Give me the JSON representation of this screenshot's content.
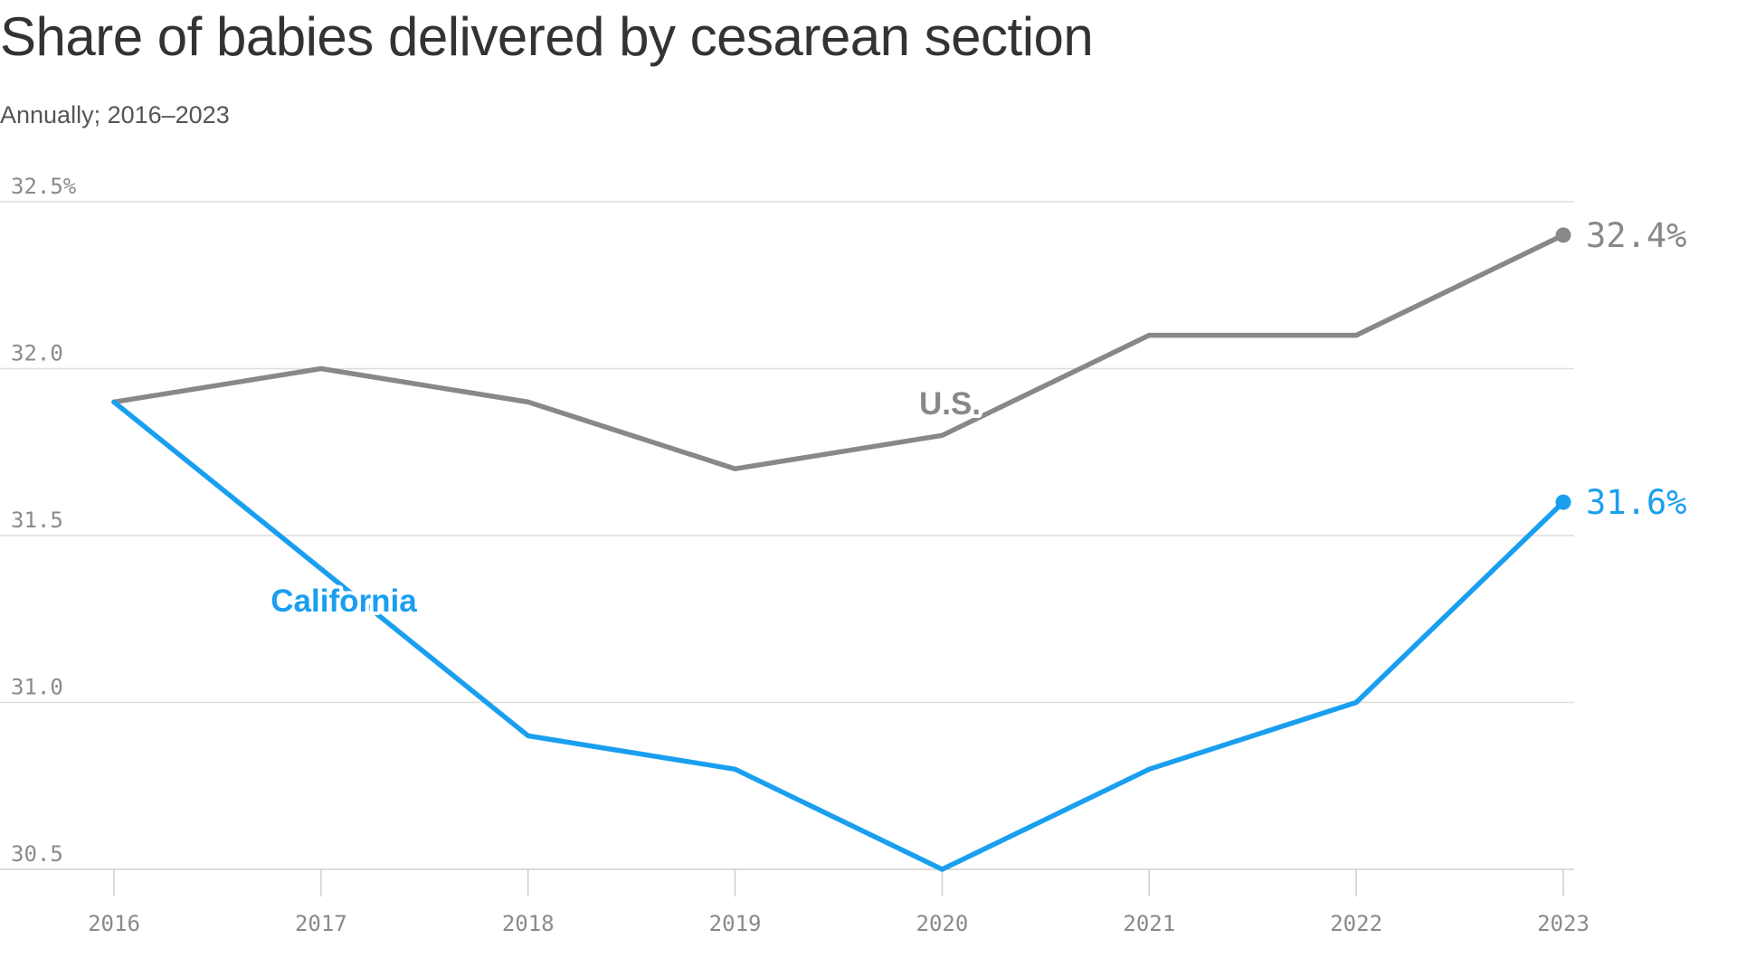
{
  "chart_data": {
    "type": "line",
    "title": "Share of babies delivered by cesarean section",
    "subtitle": "Annually; 2016–2023",
    "x": [
      2016,
      2017,
      2018,
      2019,
      2020,
      2021,
      2022,
      2023
    ],
    "x_tick_labels": [
      "2016",
      "2017",
      "2018",
      "2019",
      "2020",
      "2021",
      "2022",
      "2023"
    ],
    "y_ticks": [
      30.5,
      31.0,
      31.5,
      32.0,
      32.5
    ],
    "y_tick_labels": [
      "30.5",
      "31.0",
      "31.5",
      "32.0",
      "32.5%"
    ],
    "ylim": [
      30.5,
      32.5
    ],
    "grid": true,
    "series": [
      {
        "name": "U.S.",
        "color": "#888888",
        "values": [
          31.9,
          32.0,
          31.9,
          31.7,
          31.8,
          32.1,
          32.1,
          32.4
        ],
        "end_label": "32.4%"
      },
      {
        "name": "California",
        "color": "#1a9ff0",
        "values": [
          31.9,
          31.4,
          30.9,
          30.8,
          30.5,
          30.8,
          31.0,
          31.6
        ],
        "end_label": "31.6%"
      }
    ]
  }
}
